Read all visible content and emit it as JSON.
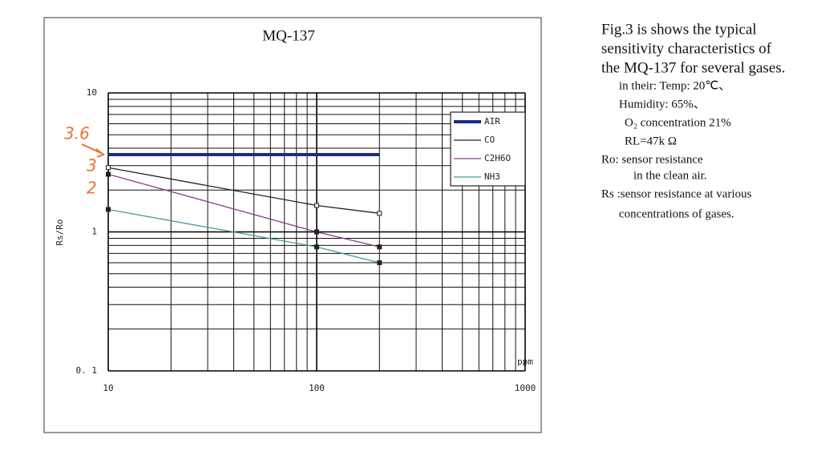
{
  "chart_data": {
    "type": "line",
    "title": "MQ-137",
    "xlabel": "ppm",
    "ylabel": "Rs/Ro",
    "xscale": "log",
    "yscale": "log",
    "xlim": [
      10,
      1000
    ],
    "ylim": [
      0.1,
      10
    ],
    "xticks": [
      10,
      100,
      1000
    ],
    "yticks": [
      {
        "value": 0.1,
        "label": "0. 1"
      },
      1,
      10
    ],
    "grid": true,
    "minor_grid": true,
    "legend": "upper right",
    "x": [
      10,
      100,
      200
    ],
    "series": [
      {
        "name": "AIR",
        "color": "#1c2a8a",
        "values": [
          3.6,
          3.6,
          3.6
        ]
      },
      {
        "name": "CO",
        "color": "#222222",
        "values": [
          2.9,
          1.55,
          1.36
        ]
      },
      {
        "name": "C2H6O",
        "color": "#8a3c8a",
        "values": [
          2.6,
          1.0,
          0.78
        ]
      },
      {
        "name": "NH3",
        "color": "#3f9c9c",
        "values": [
          1.45,
          0.78,
          0.6
        ]
      }
    ],
    "annotations": [
      "3.6",
      "3",
      "2"
    ]
  },
  "description": [
    "Fig.3 is shows the typical",
    "sensitivity characteristics of",
    "the MQ-137 for several gases.",
    "in their: Temp: 20℃、",
    "Humidity: 65%、",
    "O₂ concentration 21%",
    "RL=47k Ω",
    "Ro: sensor resistance",
    "in the clean air.",
    "Rs :sensor resistance at various",
    "concentrations of gases."
  ]
}
